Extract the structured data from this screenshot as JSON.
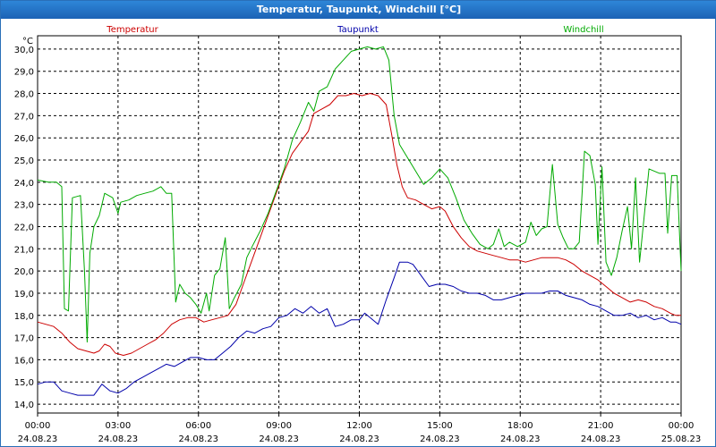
{
  "chart_data": {
    "type": "line",
    "title": "Temperatur, Taupunkt, Windchill [°C]",
    "ylabel": "°C",
    "ylim": [
      13.6,
      30.6
    ],
    "yticks": [
      14,
      15,
      16,
      17,
      18,
      19,
      20,
      21,
      22,
      23,
      24,
      25,
      26,
      27,
      28,
      29,
      30
    ],
    "ytick_labels": [
      "14,0",
      "15,0",
      "16,0",
      "17,0",
      "18,0",
      "19,0",
      "20,0",
      "21,0",
      "22,0",
      "23,0",
      "24,0",
      "25,0",
      "26,0",
      "27,0",
      "28,0",
      "29,0",
      "30,0"
    ],
    "xlim": [
      0,
      24
    ],
    "xticks": [
      {
        "time": "00:00",
        "date": "24.08.23"
      },
      {
        "time": "03:00",
        "date": "24.08.23"
      },
      {
        "time": "06:00",
        "date": "24.08.23"
      },
      {
        "time": "09:00",
        "date": "24.08.23"
      },
      {
        "time": "12:00",
        "date": "24.08.23"
      },
      {
        "time": "15:00",
        "date": "24.08.23"
      },
      {
        "time": "18:00",
        "date": "24.08.23"
      },
      {
        "time": "21:00",
        "date": "24.08.23"
      },
      {
        "time": "00:00",
        "date": "25.08.23"
      }
    ],
    "grid": true,
    "series": [
      {
        "name": "Temperatur",
        "color": "#cc0000",
        "points": [
          [
            0,
            17.7
          ],
          [
            0.3,
            17.6
          ],
          [
            0.6,
            17.5
          ],
          [
            0.9,
            17.2
          ],
          [
            1.2,
            16.8
          ],
          [
            1.5,
            16.5
          ],
          [
            1.8,
            16.4
          ],
          [
            2.1,
            16.3
          ],
          [
            2.3,
            16.4
          ],
          [
            2.5,
            16.7
          ],
          [
            2.7,
            16.6
          ],
          [
            2.9,
            16.3
          ],
          [
            3.2,
            16.2
          ],
          [
            3.5,
            16.3
          ],
          [
            3.8,
            16.5
          ],
          [
            4.1,
            16.7
          ],
          [
            4.4,
            16.9
          ],
          [
            4.7,
            17.2
          ],
          [
            5.0,
            17.6
          ],
          [
            5.3,
            17.8
          ],
          [
            5.6,
            17.9
          ],
          [
            5.9,
            17.9
          ],
          [
            6.2,
            17.7
          ],
          [
            6.5,
            17.8
          ],
          [
            6.8,
            17.9
          ],
          [
            7.1,
            18.0
          ],
          [
            7.4,
            18.5
          ],
          [
            7.7,
            19.5
          ],
          [
            8.0,
            20.5
          ],
          [
            8.3,
            21.5
          ],
          [
            8.6,
            22.5
          ],
          [
            8.9,
            23.5
          ],
          [
            9.2,
            24.5
          ],
          [
            9.5,
            25.3
          ],
          [
            9.8,
            25.8
          ],
          [
            10.1,
            26.3
          ],
          [
            10.3,
            27.1
          ],
          [
            10.6,
            27.3
          ],
          [
            10.9,
            27.5
          ],
          [
            11.2,
            27.9
          ],
          [
            11.5,
            27.9
          ],
          [
            11.8,
            28.0
          ],
          [
            12.1,
            27.9
          ],
          [
            12.4,
            28.0
          ],
          [
            12.7,
            27.9
          ],
          [
            13.0,
            27.5
          ],
          [
            13.2,
            26.2
          ],
          [
            13.4,
            24.8
          ],
          [
            13.6,
            23.8
          ],
          [
            13.8,
            23.3
          ],
          [
            14.1,
            23.2
          ],
          [
            14.4,
            23.0
          ],
          [
            14.7,
            22.8
          ],
          [
            15.0,
            22.9
          ],
          [
            15.2,
            22.7
          ],
          [
            15.5,
            22.0
          ],
          [
            15.8,
            21.5
          ],
          [
            16.1,
            21.1
          ],
          [
            16.4,
            20.9
          ],
          [
            16.7,
            20.8
          ],
          [
            17.0,
            20.7
          ],
          [
            17.3,
            20.6
          ],
          [
            17.6,
            20.5
          ],
          [
            17.9,
            20.5
          ],
          [
            18.2,
            20.4
          ],
          [
            18.5,
            20.5
          ],
          [
            18.8,
            20.6
          ],
          [
            19.1,
            20.6
          ],
          [
            19.4,
            20.6
          ],
          [
            19.7,
            20.5
          ],
          [
            20.0,
            20.3
          ],
          [
            20.3,
            20.0
          ],
          [
            20.6,
            19.8
          ],
          [
            20.9,
            19.6
          ],
          [
            21.2,
            19.3
          ],
          [
            21.5,
            19.0
          ],
          [
            21.8,
            18.8
          ],
          [
            22.1,
            18.6
          ],
          [
            22.4,
            18.7
          ],
          [
            22.7,
            18.6
          ],
          [
            23.0,
            18.4
          ],
          [
            23.3,
            18.3
          ],
          [
            23.6,
            18.1
          ],
          [
            23.8,
            18.0
          ],
          [
            24.0,
            18.0
          ]
        ]
      },
      {
        "name": "Taupunkt",
        "color": "#0000aa",
        "points": [
          [
            0,
            14.9
          ],
          [
            0.3,
            15.0
          ],
          [
            0.6,
            15.0
          ],
          [
            0.9,
            14.6
          ],
          [
            1.2,
            14.5
          ],
          [
            1.5,
            14.4
          ],
          [
            1.8,
            14.4
          ],
          [
            2.1,
            14.4
          ],
          [
            2.4,
            14.9
          ],
          [
            2.7,
            14.6
          ],
          [
            3.0,
            14.5
          ],
          [
            3.3,
            14.7
          ],
          [
            3.6,
            15.0
          ],
          [
            3.9,
            15.2
          ],
          [
            4.2,
            15.4
          ],
          [
            4.5,
            15.6
          ],
          [
            4.8,
            15.8
          ],
          [
            5.1,
            15.7
          ],
          [
            5.4,
            15.9
          ],
          [
            5.7,
            16.1
          ],
          [
            6.0,
            16.1
          ],
          [
            6.3,
            16.0
          ],
          [
            6.6,
            16.0
          ],
          [
            6.9,
            16.3
          ],
          [
            7.2,
            16.6
          ],
          [
            7.5,
            17.0
          ],
          [
            7.8,
            17.3
          ],
          [
            8.1,
            17.2
          ],
          [
            8.4,
            17.4
          ],
          [
            8.7,
            17.5
          ],
          [
            9.0,
            17.9
          ],
          [
            9.3,
            18.0
          ],
          [
            9.6,
            18.3
          ],
          [
            9.9,
            18.1
          ],
          [
            10.2,
            18.4
          ],
          [
            10.5,
            18.1
          ],
          [
            10.8,
            18.3
          ],
          [
            11.1,
            17.5
          ],
          [
            11.4,
            17.6
          ],
          [
            11.7,
            17.8
          ],
          [
            12.0,
            17.8
          ],
          [
            12.2,
            18.1
          ],
          [
            12.5,
            17.8
          ],
          [
            12.7,
            17.6
          ],
          [
            13.0,
            18.7
          ],
          [
            13.3,
            19.7
          ],
          [
            13.5,
            20.4
          ],
          [
            13.8,
            20.4
          ],
          [
            14.0,
            20.3
          ],
          [
            14.3,
            19.8
          ],
          [
            14.6,
            19.3
          ],
          [
            14.9,
            19.4
          ],
          [
            15.2,
            19.4
          ],
          [
            15.5,
            19.3
          ],
          [
            15.8,
            19.1
          ],
          [
            16.1,
            19.0
          ],
          [
            16.4,
            19.0
          ],
          [
            16.7,
            18.9
          ],
          [
            17.0,
            18.7
          ],
          [
            17.3,
            18.7
          ],
          [
            17.6,
            18.8
          ],
          [
            17.9,
            18.9
          ],
          [
            18.2,
            19.0
          ],
          [
            18.5,
            19.0
          ],
          [
            18.8,
            19.0
          ],
          [
            19.1,
            19.1
          ],
          [
            19.4,
            19.1
          ],
          [
            19.7,
            18.9
          ],
          [
            20.0,
            18.8
          ],
          [
            20.3,
            18.7
          ],
          [
            20.6,
            18.5
          ],
          [
            20.9,
            18.4
          ],
          [
            21.2,
            18.2
          ],
          [
            21.5,
            18.0
          ],
          [
            21.8,
            18.0
          ],
          [
            22.1,
            18.1
          ],
          [
            22.4,
            17.9
          ],
          [
            22.7,
            18.0
          ],
          [
            23.0,
            17.8
          ],
          [
            23.3,
            17.9
          ],
          [
            23.6,
            17.7
          ],
          [
            23.8,
            17.7
          ],
          [
            24.0,
            17.6
          ]
        ]
      },
      {
        "name": "Windchill",
        "color": "#00aa00",
        "points": [
          [
            0,
            24.1
          ],
          [
            0.4,
            24.0
          ],
          [
            0.7,
            24.0
          ],
          [
            0.9,
            23.8
          ],
          [
            1.0,
            18.3
          ],
          [
            1.15,
            18.2
          ],
          [
            1.3,
            23.3
          ],
          [
            1.6,
            23.4
          ],
          [
            1.75,
            20.0
          ],
          [
            1.85,
            16.8
          ],
          [
            1.95,
            20.8
          ],
          [
            2.1,
            22.0
          ],
          [
            2.3,
            22.5
          ],
          [
            2.5,
            23.5
          ],
          [
            2.8,
            23.3
          ],
          [
            3.0,
            22.6
          ],
          [
            3.1,
            23.1
          ],
          [
            3.4,
            23.2
          ],
          [
            3.7,
            23.4
          ],
          [
            4.0,
            23.5
          ],
          [
            4.3,
            23.6
          ],
          [
            4.6,
            23.8
          ],
          [
            4.8,
            23.5
          ],
          [
            5.0,
            23.5
          ],
          [
            5.15,
            18.6
          ],
          [
            5.3,
            19.4
          ],
          [
            5.5,
            19.0
          ],
          [
            5.7,
            18.8
          ],
          [
            5.9,
            18.5
          ],
          [
            6.1,
            18.1
          ],
          [
            6.3,
            19.0
          ],
          [
            6.4,
            18.2
          ],
          [
            6.6,
            19.8
          ],
          [
            6.8,
            20.1
          ],
          [
            7.0,
            21.5
          ],
          [
            7.15,
            18.3
          ],
          [
            7.3,
            18.7
          ],
          [
            7.6,
            19.4
          ],
          [
            7.8,
            20.6
          ],
          [
            8.0,
            21.1
          ],
          [
            8.3,
            21.8
          ],
          [
            8.6,
            22.6
          ],
          [
            8.9,
            23.6
          ],
          [
            9.2,
            24.6
          ],
          [
            9.5,
            25.9
          ],
          [
            9.8,
            26.7
          ],
          [
            10.1,
            27.6
          ],
          [
            10.3,
            27.2
          ],
          [
            10.5,
            28.1
          ],
          [
            10.8,
            28.3
          ],
          [
            11.1,
            29.1
          ],
          [
            11.4,
            29.5
          ],
          [
            11.7,
            29.9
          ],
          [
            12.0,
            30.0
          ],
          [
            12.3,
            30.1
          ],
          [
            12.6,
            30.0
          ],
          [
            12.9,
            30.1
          ],
          [
            13.1,
            29.5
          ],
          [
            13.3,
            27.0
          ],
          [
            13.5,
            25.7
          ],
          [
            13.8,
            25.1
          ],
          [
            14.1,
            24.5
          ],
          [
            14.4,
            23.9
          ],
          [
            14.7,
            24.2
          ],
          [
            15.0,
            24.6
          ],
          [
            15.3,
            24.2
          ],
          [
            15.6,
            23.3
          ],
          [
            15.9,
            22.3
          ],
          [
            16.2,
            21.7
          ],
          [
            16.5,
            21.2
          ],
          [
            16.8,
            21.0
          ],
          [
            17.0,
            21.2
          ],
          [
            17.2,
            21.9
          ],
          [
            17.4,
            21.1
          ],
          [
            17.6,
            21.3
          ],
          [
            17.9,
            21.1
          ],
          [
            18.2,
            21.3
          ],
          [
            18.4,
            22.2
          ],
          [
            18.6,
            21.6
          ],
          [
            18.8,
            21.9
          ],
          [
            19.0,
            22.0
          ],
          [
            19.2,
            24.8
          ],
          [
            19.4,
            22.1
          ],
          [
            19.6,
            21.5
          ],
          [
            19.8,
            21.0
          ],
          [
            20.0,
            21.0
          ],
          [
            20.2,
            21.3
          ],
          [
            20.4,
            25.4
          ],
          [
            20.6,
            25.2
          ],
          [
            20.8,
            23.9
          ],
          [
            20.9,
            21.2
          ],
          [
            21.05,
            24.7
          ],
          [
            21.2,
            20.4
          ],
          [
            21.4,
            19.8
          ],
          [
            21.6,
            20.6
          ],
          [
            21.8,
            21.8
          ],
          [
            22.0,
            22.9
          ],
          [
            22.15,
            21.0
          ],
          [
            22.3,
            24.2
          ],
          [
            22.45,
            20.4
          ],
          [
            22.6,
            22.2
          ],
          [
            22.8,
            24.6
          ],
          [
            23.0,
            24.5
          ],
          [
            23.2,
            24.4
          ],
          [
            23.4,
            24.4
          ],
          [
            23.5,
            21.7
          ],
          [
            23.65,
            24.3
          ],
          [
            23.85,
            24.3
          ],
          [
            24.0,
            20.0
          ]
        ]
      }
    ]
  }
}
